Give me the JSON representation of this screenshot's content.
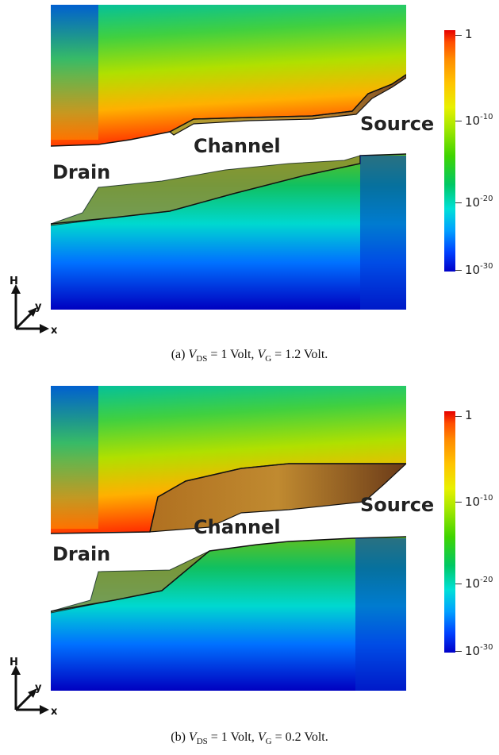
{
  "panels": [
    {
      "id": "a",
      "labels": {
        "drain": "Drain",
        "channel": "Channel",
        "source": "Source"
      },
      "colorbar": {
        "ticks": [
          {
            "base": "1",
            "exp": ""
          },
          {
            "base": "10",
            "exp": "-10"
          },
          {
            "base": "10",
            "exp": "-20"
          },
          {
            "base": "10",
            "exp": "-30"
          }
        ]
      },
      "axes": {
        "h": "H",
        "y": "y",
        "x": "x"
      },
      "caption": {
        "prefix": "(a)",
        "var1": "V",
        "sub1": "DS",
        "eq1": " = 1 Volt, ",
        "var2": "V",
        "sub2": "G",
        "eq2": " = 1.2 Volt."
      }
    },
    {
      "id": "b",
      "labels": {
        "drain": "Drain",
        "channel": "Channel",
        "source": "Source"
      },
      "colorbar": {
        "ticks": [
          {
            "base": "1",
            "exp": ""
          },
          {
            "base": "10",
            "exp": "-10"
          },
          {
            "base": "10",
            "exp": "-20"
          },
          {
            "base": "10",
            "exp": "-30"
          }
        ]
      },
      "axes": {
        "h": "H",
        "y": "y",
        "x": "x"
      },
      "caption": {
        "prefix": "(b)",
        "var1": "V",
        "sub1": "DS",
        "eq1": " = 1 Volt, ",
        "var2": "V",
        "sub2": "G",
        "eq2": " = 0.2 Volt."
      }
    }
  ]
}
